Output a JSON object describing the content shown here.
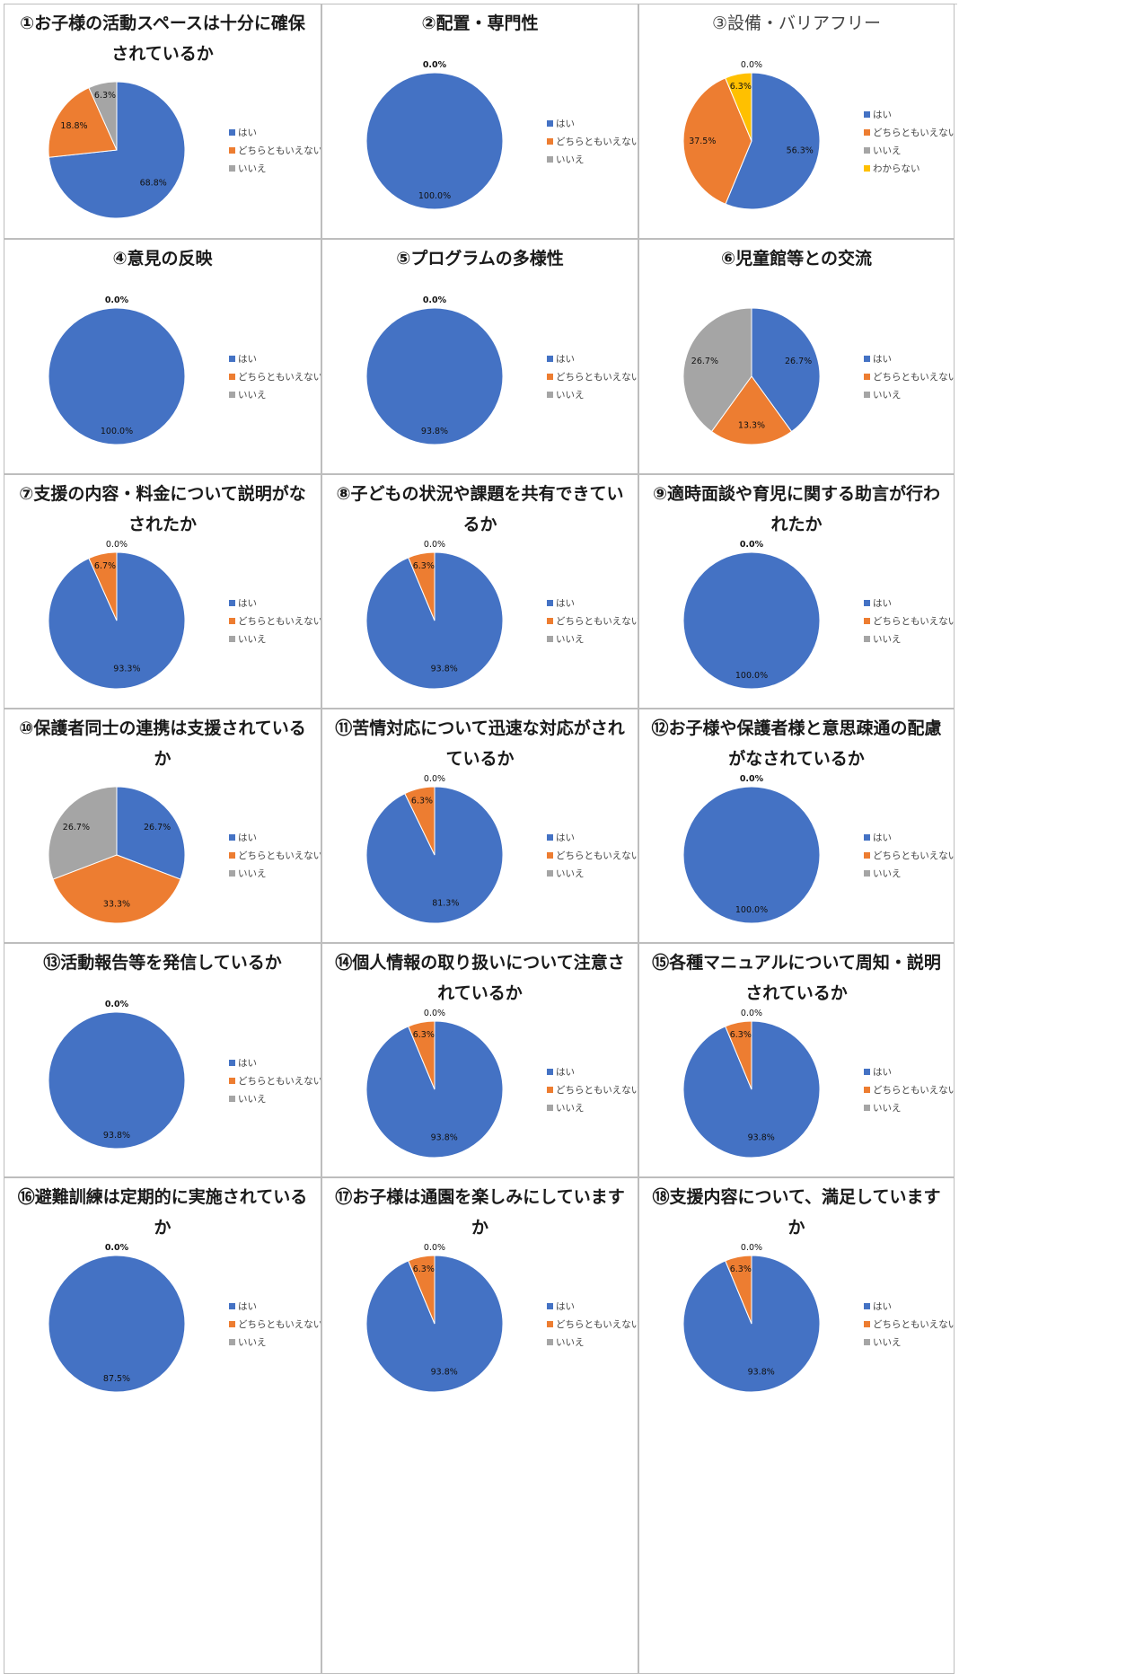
{
  "colors": {
    "はい": "#4472C4",
    "どちらともいえない": "#ED7D31",
    "いいえ": "#A5A5A5",
    "わからない": "#FFC000"
  },
  "chart_data": [
    {
      "type": "pie",
      "title": "①お子様の活動スペースは十分に確保されているか",
      "labels": [
        "はい",
        "どちらともいえない",
        "いいえ"
      ],
      "values": [
        68.8,
        18.8,
        6.3
      ],
      "data_labels": [
        "68.8%",
        "18.8%",
        "6.3%"
      ],
      "legend": "right"
    },
    {
      "type": "pie",
      "title": "②配置・専門性",
      "labels": [
        "はい",
        "どちらともいえない",
        "いいえ"
      ],
      "values": [
        100.0,
        0.0,
        0.0
      ],
      "data_labels": [
        "100.0%",
        "",
        "0.0%"
      ],
      "legend": "right"
    },
    {
      "type": "pie",
      "title": "③設備・バリアフリー",
      "title_style": "light",
      "labels": [
        "はい",
        "どちらともいえない",
        "いいえ",
        "わからない"
      ],
      "values": [
        56.3,
        37.5,
        0.0,
        6.3
      ],
      "data_labels": [
        "56.3%",
        "37.5%",
        "0.0%",
        "6.3%"
      ],
      "legend": "right"
    },
    {
      "type": "pie",
      "title": "④意見の反映",
      "labels": [
        "はい",
        "どちらともいえない",
        "いいえ"
      ],
      "values": [
        100.0,
        0.0,
        0.0
      ],
      "data_labels": [
        "100.0%",
        "",
        "0.0%"
      ],
      "legend": "right"
    },
    {
      "type": "pie",
      "title": "⑤プログラムの多様性",
      "labels": [
        "はい",
        "どちらともいえない",
        "いいえ"
      ],
      "values": [
        93.8,
        0.0,
        0.0
      ],
      "data_labels": [
        "93.8%",
        "",
        "0.0%"
      ],
      "legend": "right"
    },
    {
      "type": "pie",
      "title": "⑥児童館等との交流",
      "labels": [
        "はい",
        "どちらともいえない",
        "いいえ"
      ],
      "values": [
        26.7,
        13.3,
        26.7
      ],
      "data_labels": [
        "26.7%",
        "13.3%",
        "26.7%"
      ],
      "legend": "right"
    },
    {
      "type": "pie",
      "title": "⑦支援の内容・料金について説明がなされたか",
      "labels": [
        "はい",
        "どちらともいえない",
        "いいえ"
      ],
      "values": [
        93.3,
        6.7,
        0.0
      ],
      "data_labels": [
        "93.3%",
        "6.7%",
        "0.0%"
      ],
      "legend": "right"
    },
    {
      "type": "pie",
      "title": "⑧子どもの状況や課題を共有できているか",
      "labels": [
        "はい",
        "どちらともいえない",
        "いいえ"
      ],
      "values": [
        93.8,
        6.3,
        0.0
      ],
      "data_labels": [
        "93.8%",
        "6.3%",
        "0.0%"
      ],
      "legend": "right"
    },
    {
      "type": "pie",
      "title": "⑨適時面談や育児に関する助言が行われたか",
      "labels": [
        "はい",
        "どちらともいえない",
        "いいえ"
      ],
      "values": [
        100.0,
        0.0,
        0.0
      ],
      "data_labels": [
        "100.0%",
        "",
        "0.0%"
      ],
      "legend": "right"
    },
    {
      "type": "pie",
      "title": "⑩保護者同士の連携は支援されているか",
      "labels": [
        "はい",
        "どちらともいえない",
        "いいえ"
      ],
      "values": [
        26.7,
        33.3,
        26.7
      ],
      "data_labels": [
        "26.7%",
        "33.3%",
        "26.7%"
      ],
      "legend": "right"
    },
    {
      "type": "pie",
      "title": "⑪苦情対応について迅速な対応がされているか",
      "labels": [
        "はい",
        "どちらともいえない",
        "いいえ"
      ],
      "values": [
        81.3,
        6.3,
        0.0
      ],
      "data_labels": [
        "81.3%",
        "6.3%",
        "0.0%"
      ],
      "legend": "right"
    },
    {
      "type": "pie",
      "title": "⑫お子様や保護者様と意思疎通の配慮がなされているか",
      "labels": [
        "はい",
        "どちらともいえない",
        "いいえ"
      ],
      "values": [
        100.0,
        0.0,
        0.0
      ],
      "data_labels": [
        "100.0%",
        "",
        "0.0%"
      ],
      "legend": "right"
    },
    {
      "type": "pie",
      "title": "⑬活動報告等を発信しているか",
      "labels": [
        "はい",
        "どちらともいえない",
        "いいえ"
      ],
      "values": [
        93.8,
        0.0,
        0.0
      ],
      "data_labels": [
        "93.8%",
        "",
        "0.0%"
      ],
      "legend": "right"
    },
    {
      "type": "pie",
      "title": "⑭個人情報の取り扱いについて注意されているか",
      "labels": [
        "はい",
        "どちらともいえない",
        "いいえ"
      ],
      "values": [
        93.8,
        6.3,
        0.0
      ],
      "data_labels": [
        "93.8%",
        "6.3%",
        "0.0%"
      ],
      "legend": "right"
    },
    {
      "type": "pie",
      "title": "⑮各種マニュアルについて周知・説明されているか",
      "labels": [
        "はい",
        "どちらともいえない",
        "いいえ"
      ],
      "values": [
        93.8,
        6.3,
        0.0
      ],
      "data_labels": [
        "93.8%",
        "6.3%",
        "0.0%"
      ],
      "legend": "right"
    },
    {
      "type": "pie",
      "title": "⑯避難訓練は定期的に実施されているか",
      "labels": [
        "はい",
        "どちらともいえない",
        "いいえ"
      ],
      "values": [
        87.5,
        0.0,
        0.0
      ],
      "data_labels": [
        "87.5%",
        "",
        "0.0%"
      ],
      "legend": "right"
    },
    {
      "type": "pie",
      "title": "⑰お子様は通園を楽しみにしていますか",
      "labels": [
        "はい",
        "どちらともいえない",
        "いいえ"
      ],
      "values": [
        93.8,
        6.3,
        0.0
      ],
      "data_labels": [
        "93.8%",
        "6.3%",
        "0.0%"
      ],
      "legend": "right"
    },
    {
      "type": "pie",
      "title": "⑱支援内容について、満足していますか",
      "labels": [
        "はい",
        "どちらともいえない",
        "いいえ"
      ],
      "values": [
        93.8,
        6.3,
        0.0
      ],
      "data_labels": [
        "93.8%",
        "6.3%",
        "0.0%"
      ],
      "legend": "right"
    }
  ]
}
